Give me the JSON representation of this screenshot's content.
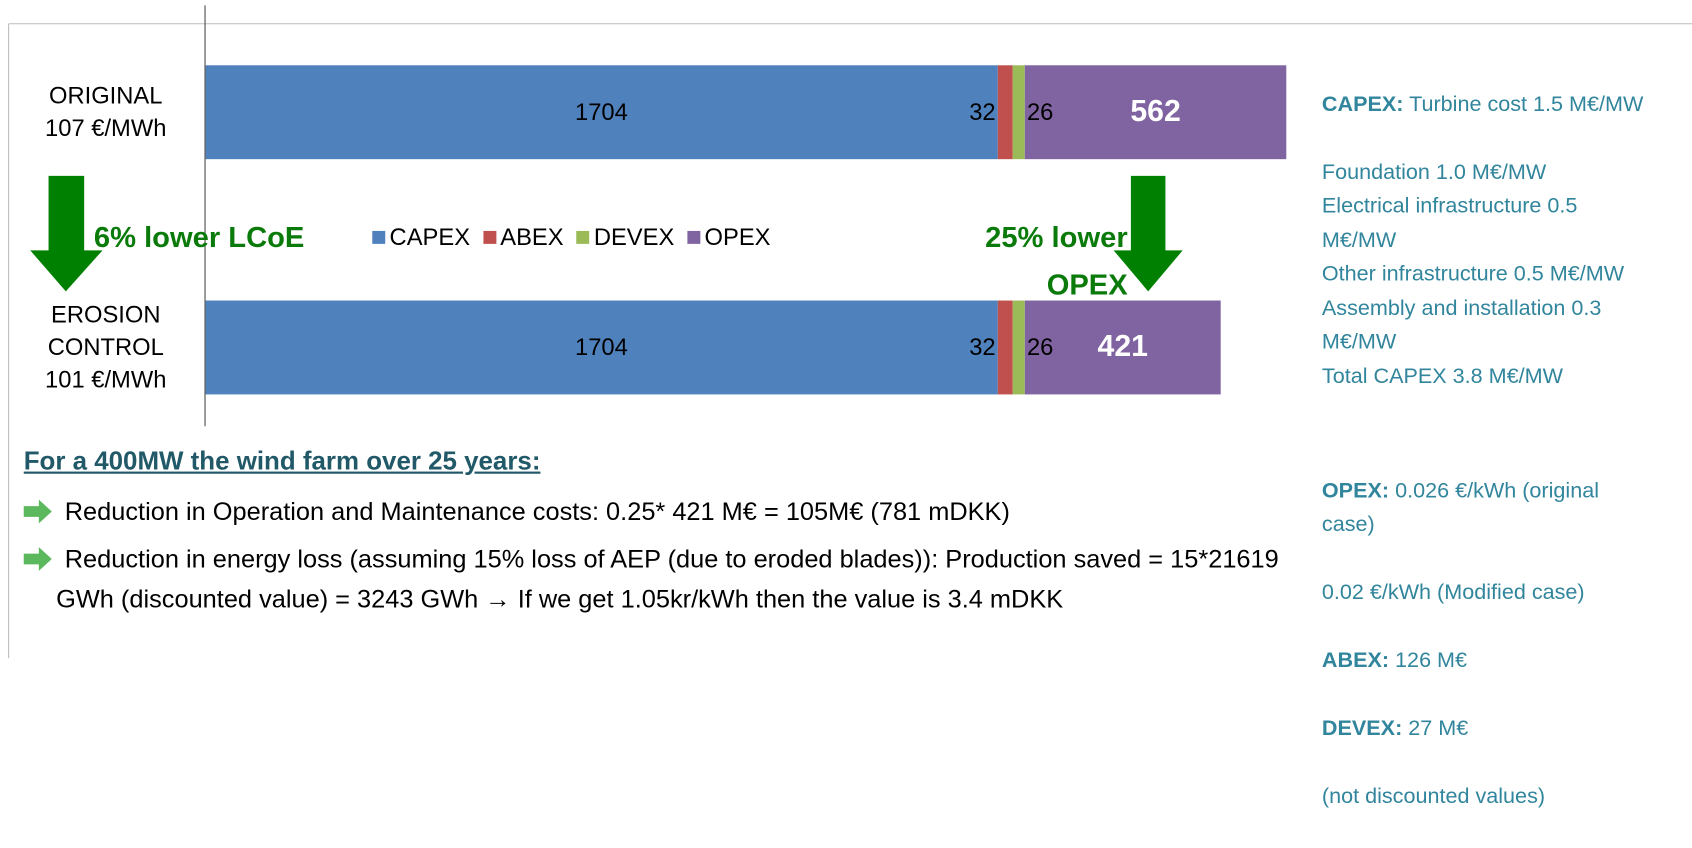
{
  "chart_data": {
    "type": "bar",
    "orientation": "horizontal",
    "stacked": true,
    "categories": [
      "ORIGINAL\n107 €/MWh",
      "EROSION\nCONTROL\n101 €/MWh"
    ],
    "series": [
      {
        "name": "CAPEX",
        "color": "#4f81bd",
        "values": [
          1704,
          1704
        ]
      },
      {
        "name": "ABEX",
        "color": "#c0504d",
        "values": [
          32,
          32
        ]
      },
      {
        "name": "DEVEX",
        "color": "#9bbb59",
        "values": [
          26,
          26
        ]
      },
      {
        "name": "OPEX",
        "color": "#8064a2",
        "values": [
          562,
          421
        ]
      }
    ],
    "annotations": [
      "6% lower LCoE",
      "25% lower\nOPEX"
    ]
  },
  "notes": {
    "heading": "For a 400MW the wind farm over 25 years:",
    "bullets": [
      "Reduction in Operation and Maintenance costs: 0.25* 421 M€  = 105M€ (781 mDKK)",
      "Reduction in energy loss (assuming 15% loss of AEP (due to eroded blades)): Production saved = 15*21619 GWh (discounted value) = 3243 GWh → If we get 1.05kr/kWh then the value is 3.4 mDKK"
    ]
  },
  "side": {
    "capex_label": "CAPEX:",
    "capex_lines": [
      "Turbine cost 1.5 M€/MW",
      "Foundation 1.0 M€/MW",
      "Electrical infrastructure 0.5 M€/MW",
      "Other infrastructure 0.5 M€/MW",
      "Assembly and installation 0.3 M€/MW",
      "Total CAPEX 3.8 M€/MW"
    ],
    "opex_label": "OPEX:",
    "opex_text": "0.026 €/kWh (original case)",
    "opex_text2": "0.02 €/kWh (Modified case)",
    "abex_label": "ABEX:",
    "abex_text": "126 M€",
    "devex_label": "DEVEX:",
    "devex_text": "27 M€",
    "footnote": "(not discounted values)"
  }
}
